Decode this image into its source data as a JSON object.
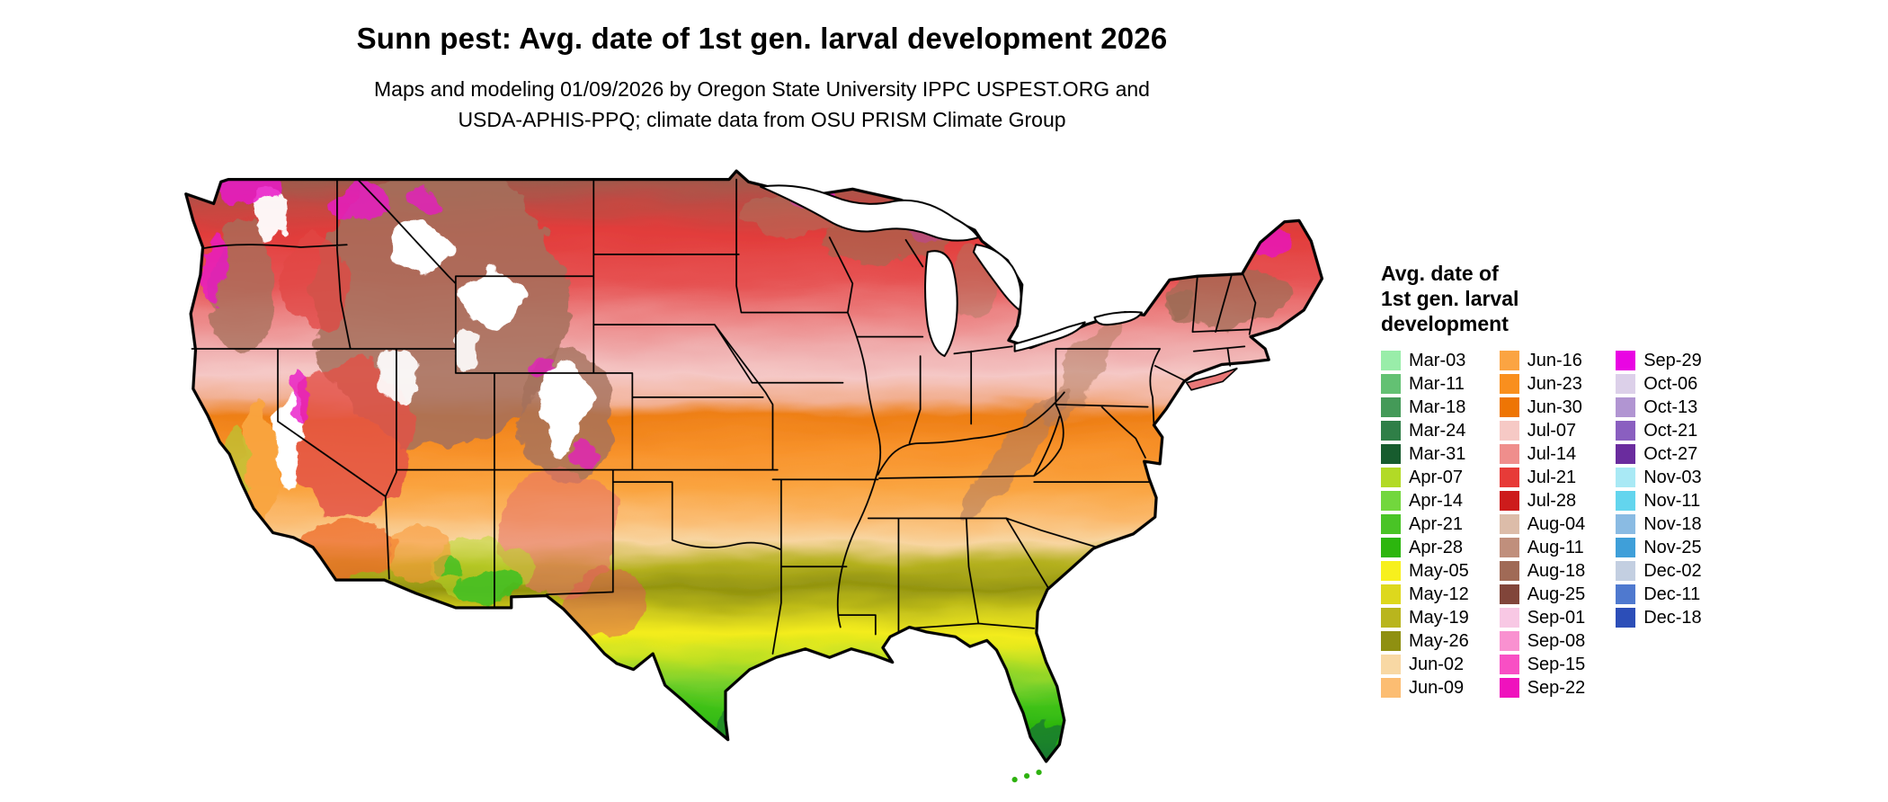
{
  "header": {
    "title": "Sunn pest: Avg. date of 1st gen. larval development 2026",
    "subtitle_lines": [
      "Maps and modeling 01/09/2026 by Oregon State University IPPC USPEST.ORG and",
      "USDA-APHIS-PPQ; climate data from OSU PRISM Climate Group"
    ]
  },
  "legend": {
    "title_lines": [
      "Avg. date of",
      "1st gen. larval",
      "development"
    ],
    "columns": [
      {
        "entries": [
          {
            "label": "Mar-03",
            "color": "#99eda9"
          },
          {
            "label": "Mar-11",
            "color": "#63c173"
          },
          {
            "label": "Mar-18",
            "color": "#449a58"
          },
          {
            "label": "Mar-24",
            "color": "#2f7f47"
          },
          {
            "label": "Mar-31",
            "color": "#175c2e"
          },
          {
            "label": "Apr-07",
            "color": "#b2da26"
          },
          {
            "label": "Apr-14",
            "color": "#72d73d"
          },
          {
            "label": "Apr-21",
            "color": "#49c426"
          },
          {
            "label": "Apr-28",
            "color": "#2cb60e"
          },
          {
            "label": "May-05",
            "color": "#f7f01d"
          },
          {
            "label": "May-12",
            "color": "#ddd81d"
          },
          {
            "label": "May-19",
            "color": "#b9b51d"
          },
          {
            "label": "May-26",
            "color": "#8f9011"
          },
          {
            "label": "Jun-02",
            "color": "#f8d8a4"
          },
          {
            "label": "Jun-09",
            "color": "#fcbd72"
          }
        ]
      },
      {
        "entries": [
          {
            "label": "Jun-16",
            "color": "#fba442"
          },
          {
            "label": "Jun-23",
            "color": "#f98f1e"
          },
          {
            "label": "Jun-30",
            "color": "#ee7504"
          },
          {
            "label": "Jul-07",
            "color": "#f6c9c5"
          },
          {
            "label": "Jul-14",
            "color": "#ef8e8c"
          },
          {
            "label": "Jul-21",
            "color": "#e73b38"
          },
          {
            "label": "Jul-28",
            "color": "#cd1b1b"
          },
          {
            "label": "Aug-04",
            "color": "#dcbca9"
          },
          {
            "label": "Aug-11",
            "color": "#c08f7c"
          },
          {
            "label": "Aug-18",
            "color": "#a06a56"
          },
          {
            "label": "Aug-25",
            "color": "#81453a"
          },
          {
            "label": "Sep-01",
            "color": "#f8c8e4"
          },
          {
            "label": "Sep-08",
            "color": "#f991d0"
          },
          {
            "label": "Sep-15",
            "color": "#f84fc4"
          },
          {
            "label": "Sep-22",
            "color": "#ef12bd"
          }
        ]
      },
      {
        "entries": [
          {
            "label": "Sep-29",
            "color": "#e905e3"
          },
          {
            "label": "Oct-06",
            "color": "#dcd0e9"
          },
          {
            "label": "Oct-13",
            "color": "#b195d2"
          },
          {
            "label": "Oct-21",
            "color": "#8a5fc0"
          },
          {
            "label": "Oct-27",
            "color": "#6a2c9e"
          },
          {
            "label": "Nov-03",
            "color": "#a9e9f5"
          },
          {
            "label": "Nov-11",
            "color": "#63d5ee"
          },
          {
            "label": "Nov-18",
            "color": "#8abbe3"
          },
          {
            "label": "Nov-25",
            "color": "#3f9fd9"
          },
          {
            "label": "Dec-02",
            "color": "#c3cfe1"
          },
          {
            "label": "Dec-11",
            "color": "#4f79cf"
          },
          {
            "label": "Dec-18",
            "color": "#2c4eb8"
          }
        ]
      }
    ]
  }
}
